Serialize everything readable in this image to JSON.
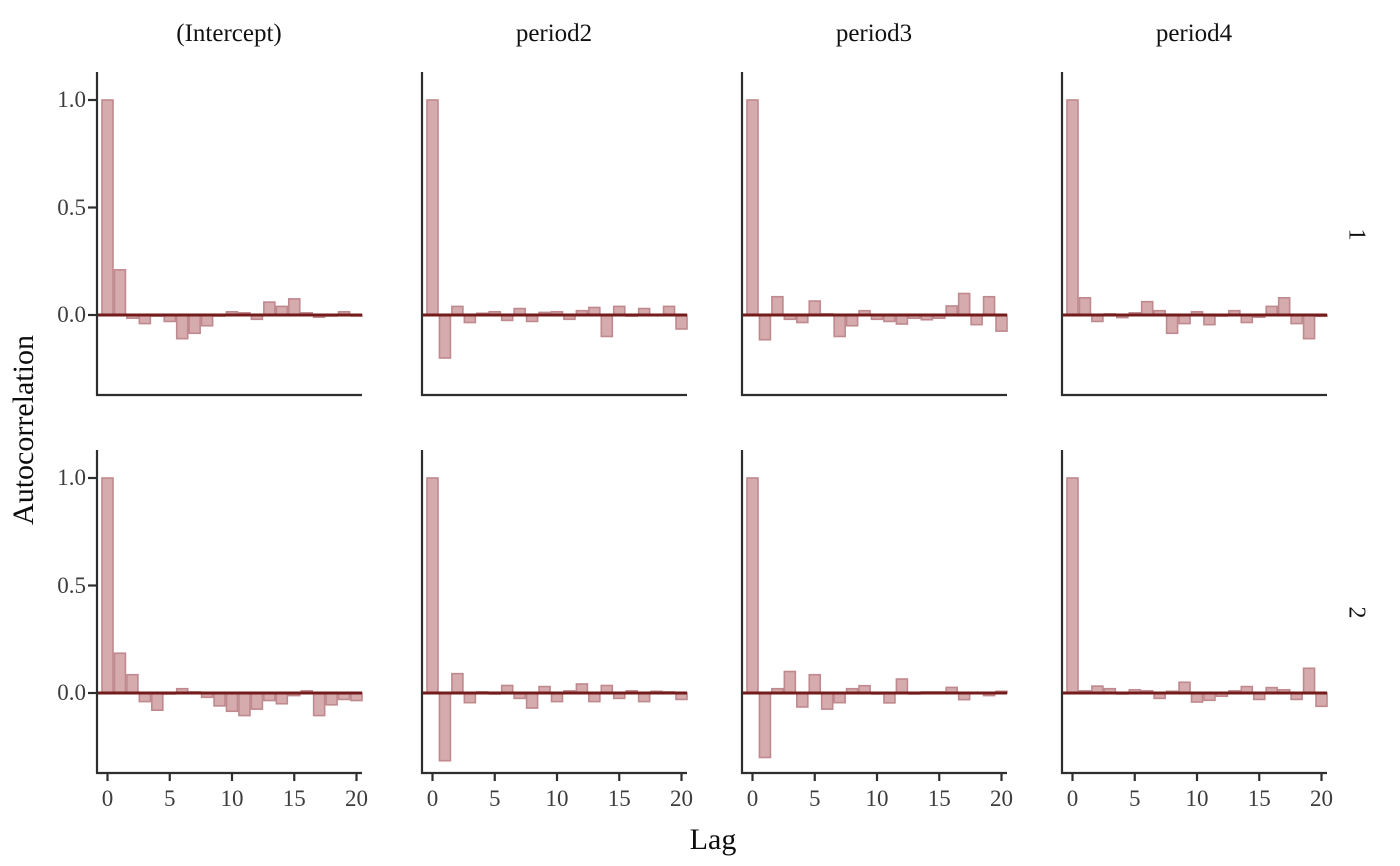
{
  "chart_data": {
    "type": "bar",
    "title": "",
    "xlabel": "Lag",
    "ylabel": "Autocorrelation",
    "col_facets": [
      "(Intercept)",
      "period2",
      "period3",
      "period4"
    ],
    "row_facets": [
      "1",
      "2"
    ],
    "x": [
      0,
      1,
      2,
      3,
      4,
      5,
      6,
      7,
      8,
      9,
      10,
      11,
      12,
      13,
      14,
      15,
      16,
      17,
      18,
      19,
      20
    ],
    "xticks": [
      0,
      5,
      10,
      15,
      20
    ],
    "xtick_labels": [
      "0",
      "5",
      "10",
      "15",
      "20"
    ],
    "yticks": [
      1.0,
      0.5,
      0.0
    ],
    "ytick_labels": [
      "1.0",
      "0.5",
      "0.0"
    ],
    "ylim": [
      -0.38,
      1.13
    ],
    "grid": "off",
    "legend": "none",
    "panels": [
      {
        "row": "1",
        "col": "(Intercept)",
        "values": [
          1.0,
          0.21,
          -0.015,
          -0.04,
          -0.005,
          -0.03,
          -0.11,
          -0.085,
          -0.05,
          -0.005,
          0.015,
          0.01,
          -0.02,
          0.06,
          0.04,
          0.075,
          0.01,
          -0.01,
          -0.003,
          0.015,
          -0.003
        ]
      },
      {
        "row": "1",
        "col": "period2",
        "values": [
          1.0,
          -0.2,
          0.04,
          -0.035,
          0.008,
          0.015,
          -0.025,
          0.03,
          -0.03,
          0.012,
          0.015,
          -0.02,
          0.02,
          0.035,
          -0.1,
          0.04,
          -0.005,
          0.03,
          0.003,
          0.04,
          -0.065
        ]
      },
      {
        "row": "1",
        "col": "period3",
        "values": [
          1.0,
          -0.115,
          0.085,
          -0.02,
          -0.035,
          0.065,
          0.005,
          -0.1,
          -0.05,
          0.02,
          -0.02,
          -0.03,
          -0.042,
          -0.015,
          -0.022,
          -0.015,
          0.042,
          0.1,
          -0.045,
          0.085,
          -0.075
        ]
      },
      {
        "row": "1",
        "col": "period4",
        "values": [
          1.0,
          0.08,
          -0.03,
          0.005,
          -0.012,
          0.01,
          0.062,
          0.02,
          -0.085,
          -0.04,
          0.015,
          -0.045,
          -0.003,
          0.02,
          -0.035,
          -0.01,
          0.04,
          0.08,
          -0.04,
          -0.11,
          -0.006
        ]
      },
      {
        "row": "2",
        "col": "(Intercept)",
        "values": [
          1.0,
          0.185,
          0.085,
          -0.04,
          -0.08,
          -0.003,
          0.02,
          0.005,
          -0.02,
          -0.06,
          -0.085,
          -0.105,
          -0.075,
          -0.035,
          -0.05,
          -0.012,
          0.01,
          -0.105,
          -0.055,
          -0.03,
          -0.035
        ]
      },
      {
        "row": "2",
        "col": "period2",
        "values": [
          1.0,
          -0.315,
          0.09,
          -0.045,
          0.005,
          -0.003,
          0.035,
          -0.025,
          -0.07,
          0.03,
          -0.04,
          0.01,
          0.042,
          -0.04,
          0.035,
          -0.025,
          0.01,
          -0.04,
          0.008,
          0.005,
          -0.03
        ]
      },
      {
        "row": "2",
        "col": "period3",
        "values": [
          1.0,
          -0.3,
          0.02,
          0.1,
          -0.065,
          0.085,
          -0.075,
          -0.045,
          0.02,
          0.034,
          -0.003,
          -0.046,
          0.065,
          -0.003,
          0.005,
          0.005,
          0.026,
          -0.031,
          0.003,
          -0.012,
          0.008
        ]
      },
      {
        "row": "2",
        "col": "period4",
        "values": [
          1.0,
          0.01,
          0.032,
          0.02,
          -0.003,
          0.015,
          0.01,
          -0.025,
          0.008,
          0.05,
          -0.042,
          -0.034,
          -0.015,
          0.01,
          0.03,
          -0.03,
          0.025,
          0.015,
          -0.03,
          0.115,
          -0.062
        ]
      }
    ],
    "colors": {
      "bar_fill": "#d5abae",
      "bar_stroke": "#bf898e",
      "zero_line": "#741b1b",
      "axis_line": "#2e2e2e",
      "tick_text": "#3d3d3d"
    }
  }
}
